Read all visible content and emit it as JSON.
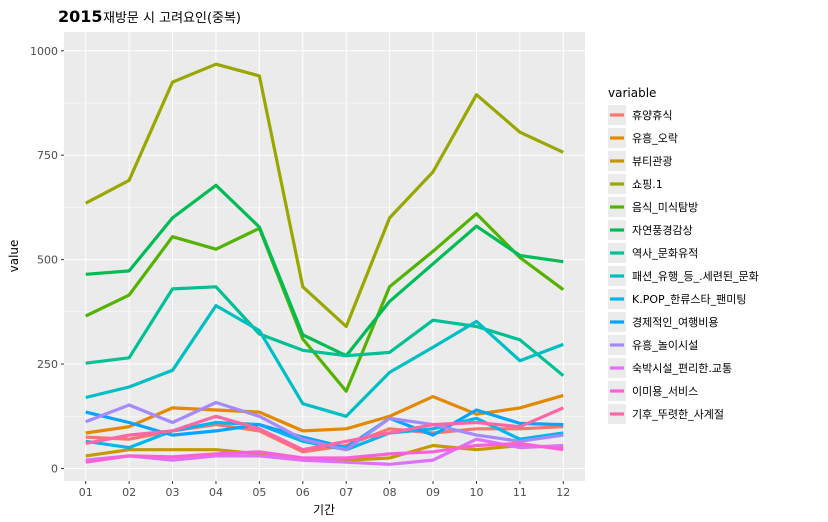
{
  "title": {
    "year": "2015",
    "subtitle": "재방문 시 고려요인(중복)"
  },
  "chart_data": {
    "type": "line",
    "title": "2015 재방문 시 고려요인(중복)",
    "xlabel": "기간",
    "ylabel": "value",
    "categories": [
      "01",
      "02",
      "03",
      "04",
      "05",
      "06",
      "07",
      "08",
      "09",
      "10",
      "11",
      "12"
    ],
    "ylim": [
      -30,
      1045
    ],
    "yticks": [
      0,
      250,
      500,
      750,
      1000
    ],
    "grid": true,
    "legend_title": "variable",
    "legend_position": "right",
    "series": [
      {
        "name": "휴양휴식",
        "color": "#F8766D",
        "values": [
          75,
          70,
          90,
          105,
          90,
          40,
          55,
          95,
          85,
          95,
          95,
          100
        ]
      },
      {
        "name": "유흥_오락",
        "color": "#E38900",
        "values": [
          85,
          100,
          145,
          140,
          135,
          90,
          95,
          125,
          172,
          130,
          145,
          175
        ]
      },
      {
        "name": "뷰티관광",
        "color": "#C49A00",
        "values": [
          30,
          45,
          45,
          45,
          35,
          20,
          20,
          25,
          55,
          45,
          55,
          50
        ]
      },
      {
        "name": "쇼핑.1",
        "color": "#99A800",
        "values": [
          635,
          690,
          925,
          968,
          940,
          435,
          340,
          600,
          710,
          895,
          805,
          757
        ]
      },
      {
        "name": "음식_미식탐방",
        "color": "#53B400",
        "values": [
          365,
          415,
          555,
          525,
          575,
          310,
          185,
          435,
          520,
          610,
          505,
          428
        ]
      },
      {
        "name": "자연풍경감상",
        "color": "#00BC56",
        "values": [
          465,
          473,
          600,
          678,
          578,
          320,
          270,
          400,
          490,
          580,
          510,
          495
        ]
      },
      {
        "name": "역사_문화유적",
        "color": "#00C094",
        "values": [
          252,
          265,
          430,
          435,
          322,
          283,
          270,
          278,
          355,
          340,
          308,
          222
        ]
      },
      {
        "name": "패션_유행_등_.세련된_문화",
        "color": "#00BFC4",
        "values": [
          170,
          195,
          235,
          390,
          330,
          155,
          125,
          230,
          290,
          352,
          258,
          297
        ]
      },
      {
        "name": "K.POP_한류스타_팬미팅",
        "color": "#00B6EB",
        "values": [
          65,
          50,
          90,
          110,
          105,
          65,
          45,
          85,
          95,
          120,
          70,
          85
        ]
      },
      {
        "name": "경제적인_여행비용",
        "color": "#06A4FF",
        "values": [
          135,
          110,
          80,
          90,
          105,
          75,
          50,
          120,
          80,
          140,
          108,
          105
        ]
      },
      {
        "name": "유흥_놀이시설",
        "color": "#A58AFF",
        "values": [
          112,
          152,
          110,
          158,
          125,
          70,
          45,
          120,
          105,
          80,
          65,
          80
        ]
      },
      {
        "name": "숙박시설_편리한.교통",
        "color": "#DF70F8",
        "values": [
          20,
          30,
          20,
          30,
          30,
          20,
          15,
          10,
          20,
          70,
          50,
          55
        ]
      },
      {
        "name": "이미용_서비스",
        "color": "#FB61D7",
        "values": [
          15,
          30,
          28,
          35,
          40,
          25,
          25,
          35,
          40,
          55,
          60,
          45
        ]
      },
      {
        "name": "기후_뚜렷한_사계절",
        "color": "#FF66A8",
        "values": [
          60,
          80,
          90,
          125,
          95,
          45,
          65,
          85,
          105,
          110,
          100,
          145
        ]
      }
    ]
  }
}
